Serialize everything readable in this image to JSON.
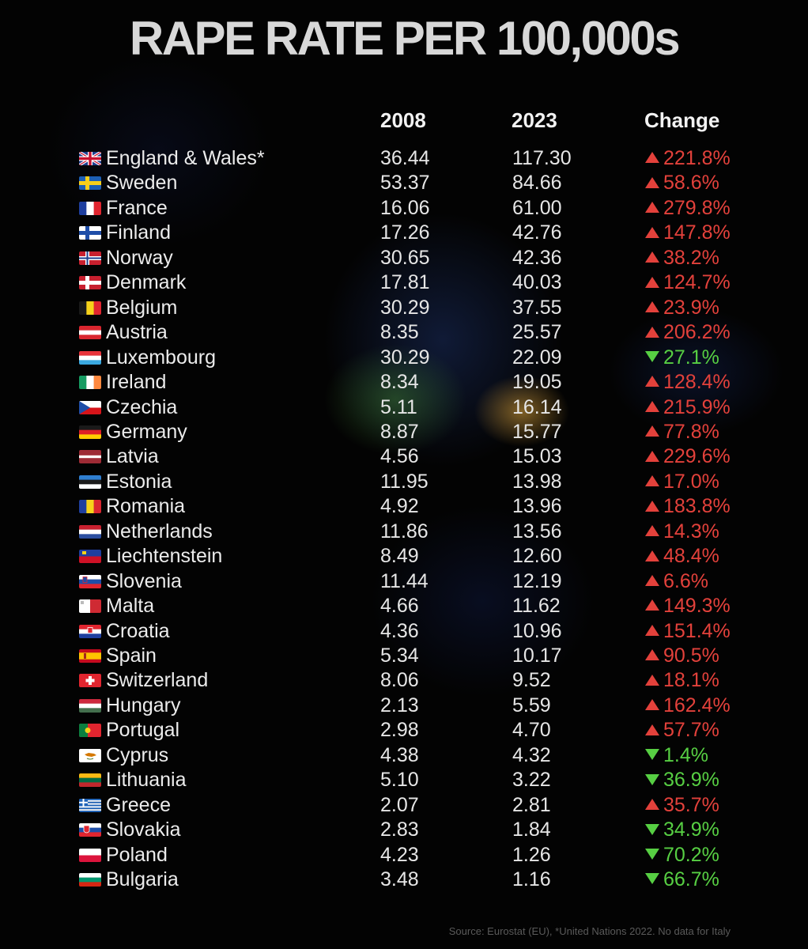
{
  "title": "RAPE RATE PER 100,000s",
  "chart_data": {
    "type": "table",
    "columns": [
      "2008",
      "2023",
      "Change"
    ],
    "rows": [
      {
        "country": "England & Wales*",
        "flag": "gb",
        "v2008": "36.44",
        "v2023": "117.30",
        "change": "221.8%",
        "direction": "up"
      },
      {
        "country": "Sweden",
        "flag": "se",
        "v2008": "53.37",
        "v2023": "84.66",
        "change": "58.6%",
        "direction": "up"
      },
      {
        "country": "France",
        "flag": "fr",
        "v2008": "16.06",
        "v2023": "61.00",
        "change": "279.8%",
        "direction": "up"
      },
      {
        "country": "Finland",
        "flag": "fi",
        "v2008": "17.26",
        "v2023": "42.76",
        "change": "147.8%",
        "direction": "up"
      },
      {
        "country": "Norway",
        "flag": "no",
        "v2008": "30.65",
        "v2023": "42.36",
        "change": "38.2%",
        "direction": "up"
      },
      {
        "country": "Denmark",
        "flag": "dk",
        "v2008": "17.81",
        "v2023": "40.03",
        "change": "124.7%",
        "direction": "up"
      },
      {
        "country": "Belgium",
        "flag": "be",
        "v2008": "30.29",
        "v2023": "37.55",
        "change": "23.9%",
        "direction": "up"
      },
      {
        "country": "Austria",
        "flag": "at",
        "v2008": "8.35",
        "v2023": "25.57",
        "change": "206.2%",
        "direction": "up"
      },
      {
        "country": "Luxembourg",
        "flag": "lu",
        "v2008": "30.29",
        "v2023": "22.09",
        "change": "27.1%",
        "direction": "down"
      },
      {
        "country": "Ireland",
        "flag": "ie",
        "v2008": "8.34",
        "v2023": "19.05",
        "change": "128.4%",
        "direction": "up"
      },
      {
        "country": "Czechia",
        "flag": "cz",
        "v2008": "5.11",
        "v2023": "16.14",
        "change": "215.9%",
        "direction": "up"
      },
      {
        "country": "Germany",
        "flag": "de",
        "v2008": "8.87",
        "v2023": "15.77",
        "change": "77.8%",
        "direction": "up"
      },
      {
        "country": "Latvia",
        "flag": "lv",
        "v2008": "4.56",
        "v2023": "15.03",
        "change": "229.6%",
        "direction": "up"
      },
      {
        "country": "Estonia",
        "flag": "ee",
        "v2008": "11.95",
        "v2023": "13.98",
        "change": "17.0%",
        "direction": "up"
      },
      {
        "country": "Romania",
        "flag": "ro",
        "v2008": "4.92",
        "v2023": "13.96",
        "change": "183.8%",
        "direction": "up"
      },
      {
        "country": "Netherlands",
        "flag": "nl",
        "v2008": "11.86",
        "v2023": "13.56",
        "change": "14.3%",
        "direction": "up"
      },
      {
        "country": "Liechtenstein",
        "flag": "li",
        "v2008": "8.49",
        "v2023": "12.60",
        "change": "48.4%",
        "direction": "up"
      },
      {
        "country": "Slovenia",
        "flag": "si",
        "v2008": "11.44",
        "v2023": "12.19",
        "change": "6.6%",
        "direction": "up"
      },
      {
        "country": "Malta",
        "flag": "mt",
        "v2008": "4.66",
        "v2023": "11.62",
        "change": "149.3%",
        "direction": "up"
      },
      {
        "country": "Croatia",
        "flag": "hr",
        "v2008": "4.36",
        "v2023": "10.96",
        "change": "151.4%",
        "direction": "up"
      },
      {
        "country": "Spain",
        "flag": "es",
        "v2008": "5.34",
        "v2023": "10.17",
        "change": "90.5%",
        "direction": "up"
      },
      {
        "country": "Switzerland",
        "flag": "ch",
        "v2008": "8.06",
        "v2023": "9.52",
        "change": "18.1%",
        "direction": "up"
      },
      {
        "country": "Hungary",
        "flag": "hu",
        "v2008": "2.13",
        "v2023": "5.59",
        "change": "162.4%",
        "direction": "up"
      },
      {
        "country": "Portugal",
        "flag": "pt",
        "v2008": "2.98",
        "v2023": "4.70",
        "change": "57.7%",
        "direction": "up"
      },
      {
        "country": "Cyprus",
        "flag": "cy",
        "v2008": "4.38",
        "v2023": "4.32",
        "change": "1.4%",
        "direction": "down"
      },
      {
        "country": "Lithuania",
        "flag": "lt",
        "v2008": "5.10",
        "v2023": "3.22",
        "change": "36.9%",
        "direction": "down"
      },
      {
        "country": "Greece",
        "flag": "gr",
        "v2008": "2.07",
        "v2023": "2.81",
        "change": "35.7%",
        "direction": "up"
      },
      {
        "country": "Slovakia",
        "flag": "sk",
        "v2008": "2.83",
        "v2023": "1.84",
        "change": "34.9%",
        "direction": "down"
      },
      {
        "country": "Poland",
        "flag": "pl",
        "v2008": "4.23",
        "v2023": "1.26",
        "change": "70.2%",
        "direction": "down"
      },
      {
        "country": "Bulgaria",
        "flag": "bg",
        "v2008": "3.48",
        "v2023": "1.16",
        "change": "66.7%",
        "direction": "down"
      }
    ]
  },
  "colors": {
    "up": "#e3413b",
    "down": "#57cf43",
    "background": "#030303"
  },
  "source": "Source: Eurostat (EU), *United Nations 2022. No data for Italy"
}
